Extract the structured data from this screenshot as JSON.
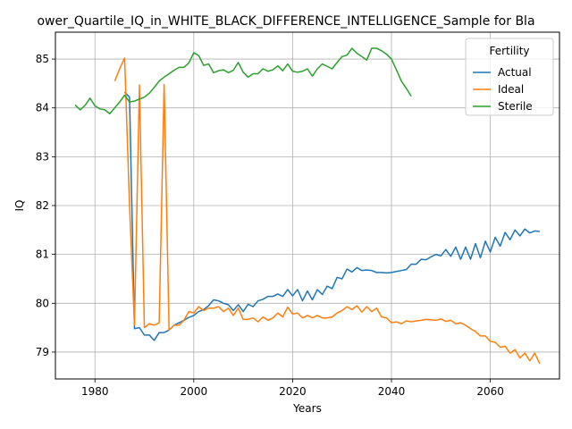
{
  "chart_data": {
    "type": "line",
    "title": "ower_Quartile_IQ_in_WHITE_BLACK_DIFFERENCE_INTELLIGENCE_Sample for Bla",
    "xlabel": "Years",
    "ylabel": "IQ",
    "xlim": [
      1972,
      2074
    ],
    "ylim": [
      78.45,
      85.55
    ],
    "xticks": [
      1980,
      2000,
      2020,
      2040,
      2060
    ],
    "yticks": [
      79,
      80,
      81,
      82,
      83,
      84,
      85
    ],
    "grid": true,
    "legend": {
      "title": "Fertility",
      "placement": "top-right"
    },
    "series": [
      {
        "name": "Actual",
        "color": "#1f77b4",
        "x": [
          1986,
          1987,
          1988,
          1989,
          1990,
          1991,
          1992,
          1993,
          1994,
          1995,
          1996,
          1997,
          1998,
          1999,
          2000,
          2001,
          2002,
          2003,
          2004,
          2005,
          2006,
          2007,
          2008,
          2009,
          2010,
          2011,
          2012,
          2013,
          2014,
          2015,
          2016,
          2017,
          2018,
          2019,
          2020,
          2021,
          2022,
          2023,
          2024,
          2025,
          2026,
          2027,
          2028,
          2029,
          2030,
          2031,
          2032,
          2033,
          2034,
          2035,
          2036,
          2037,
          2038,
          2039,
          2040,
          2041,
          2042,
          2043,
          2044,
          2045,
          2046,
          2047,
          2048,
          2049,
          2050,
          2051,
          2052,
          2053,
          2054,
          2055,
          2056,
          2057,
          2058,
          2059,
          2060,
          2061,
          2062,
          2063,
          2064,
          2065,
          2066,
          2067,
          2068,
          2069,
          2070
        ],
        "y": [
          84.32,
          84.22,
          79.48,
          79.5,
          79.35,
          79.35,
          79.24,
          79.4,
          79.4,
          79.45,
          79.55,
          79.6,
          79.65,
          79.71,
          79.75,
          79.83,
          79.87,
          79.95,
          80.07,
          80.05,
          80.0,
          79.97,
          79.85,
          79.97,
          79.83,
          79.98,
          79.93,
          80.05,
          80.08,
          80.14,
          80.14,
          80.19,
          80.14,
          80.28,
          80.15,
          80.28,
          80.05,
          80.25,
          80.07,
          80.28,
          80.18,
          80.35,
          80.3,
          80.53,
          80.5,
          80.7,
          80.64,
          80.73,
          80.67,
          80.68,
          80.67,
          80.63,
          80.63,
          80.62,
          80.63,
          80.65,
          80.67,
          80.69,
          80.8,
          80.8,
          80.9,
          80.89,
          80.95,
          81.0,
          80.97,
          81.1,
          80.96,
          81.15,
          80.9,
          81.15,
          80.9,
          81.22,
          80.93,
          81.27,
          81.05,
          81.35,
          81.17,
          81.45,
          81.3,
          81.5,
          81.38,
          81.52,
          81.44,
          81.48,
          81.47
        ]
      },
      {
        "name": "Ideal",
        "color": "#ff7f0e",
        "x": [
          1984,
          1985,
          1986,
          1987,
          1988,
          1989,
          1990,
          1991,
          1992,
          1993,
          1994,
          1995,
          1996,
          1997,
          1998,
          1999,
          2000,
          2001,
          2002,
          2003,
          2004,
          2005,
          2006,
          2007,
          2008,
          2009,
          2010,
          2011,
          2012,
          2013,
          2014,
          2015,
          2016,
          2017,
          2018,
          2019,
          2020,
          2021,
          2022,
          2023,
          2024,
          2025,
          2026,
          2027,
          2028,
          2029,
          2030,
          2031,
          2032,
          2033,
          2034,
          2035,
          2036,
          2037,
          2038,
          2039,
          2040,
          2041,
          2042,
          2043,
          2044,
          2045,
          2046,
          2047,
          2048,
          2049,
          2050,
          2051,
          2052,
          2053,
          2054,
          2055,
          2056,
          2057,
          2058,
          2059,
          2060,
          2061,
          2062,
          2063,
          2064,
          2065,
          2066,
          2067,
          2068,
          2069,
          2070
        ],
        "y": [
          84.55,
          84.8,
          85.02,
          82.0,
          79.55,
          84.47,
          79.5,
          79.58,
          79.55,
          79.6,
          84.48,
          79.45,
          79.55,
          79.55,
          79.65,
          79.83,
          79.8,
          79.93,
          79.85,
          79.9,
          79.9,
          79.93,
          79.83,
          79.9,
          79.75,
          79.9,
          79.67,
          79.67,
          79.7,
          79.62,
          79.72,
          79.65,
          79.7,
          79.8,
          79.72,
          79.92,
          79.78,
          79.8,
          79.7,
          79.75,
          79.7,
          79.75,
          79.7,
          79.7,
          79.72,
          79.8,
          79.85,
          79.93,
          79.87,
          79.95,
          79.82,
          79.93,
          79.83,
          79.9,
          79.72,
          79.7,
          79.6,
          79.62,
          79.58,
          79.64,
          79.62,
          79.64,
          79.65,
          79.67,
          79.66,
          79.65,
          79.68,
          79.63,
          79.65,
          79.58,
          79.6,
          79.55,
          79.48,
          79.42,
          79.33,
          79.33,
          79.22,
          79.2,
          79.1,
          79.12,
          78.98,
          79.05,
          78.88,
          78.98,
          78.82,
          78.98,
          78.76
        ]
      },
      {
        "name": "Sterile",
        "color": "#2ca02c",
        "x": [
          1976,
          1977,
          1978,
          1979,
          1980,
          1981,
          1982,
          1983,
          1984,
          1985,
          1986,
          1987,
          1988,
          1989,
          1990,
          1991,
          1992,
          1993,
          1994,
          1995,
          1996,
          1997,
          1998,
          1999,
          2000,
          2001,
          2002,
          2003,
          2004,
          2005,
          2006,
          2007,
          2008,
          2009,
          2010,
          2011,
          2012,
          2013,
          2014,
          2015,
          2016,
          2017,
          2018,
          2019,
          2020,
          2021,
          2022,
          2023,
          2024,
          2025,
          2026,
          2027,
          2028,
          2029,
          2030,
          2031,
          2032,
          2033,
          2034,
          2035,
          2036,
          2037,
          2038,
          2039,
          2040,
          2041,
          2042,
          2043,
          2044
        ],
        "y": [
          84.06,
          83.96,
          84.05,
          84.2,
          84.04,
          83.98,
          83.96,
          83.88,
          84.0,
          84.12,
          84.26,
          84.12,
          84.14,
          84.18,
          84.22,
          84.3,
          84.42,
          84.55,
          84.63,
          84.7,
          84.77,
          84.83,
          84.83,
          84.92,
          85.13,
          85.07,
          84.87,
          84.9,
          84.72,
          84.76,
          84.78,
          84.72,
          84.77,
          84.93,
          84.73,
          84.63,
          84.7,
          84.7,
          84.8,
          84.75,
          84.78,
          84.86,
          84.76,
          84.9,
          84.75,
          84.73,
          84.75,
          84.8,
          84.65,
          84.8,
          84.9,
          84.85,
          84.8,
          84.93,
          85.05,
          85.08,
          85.22,
          85.12,
          85.05,
          84.98,
          85.22,
          85.22,
          85.17,
          85.1,
          85.0,
          84.78,
          84.55,
          84.4,
          84.24
        ]
      }
    ]
  }
}
